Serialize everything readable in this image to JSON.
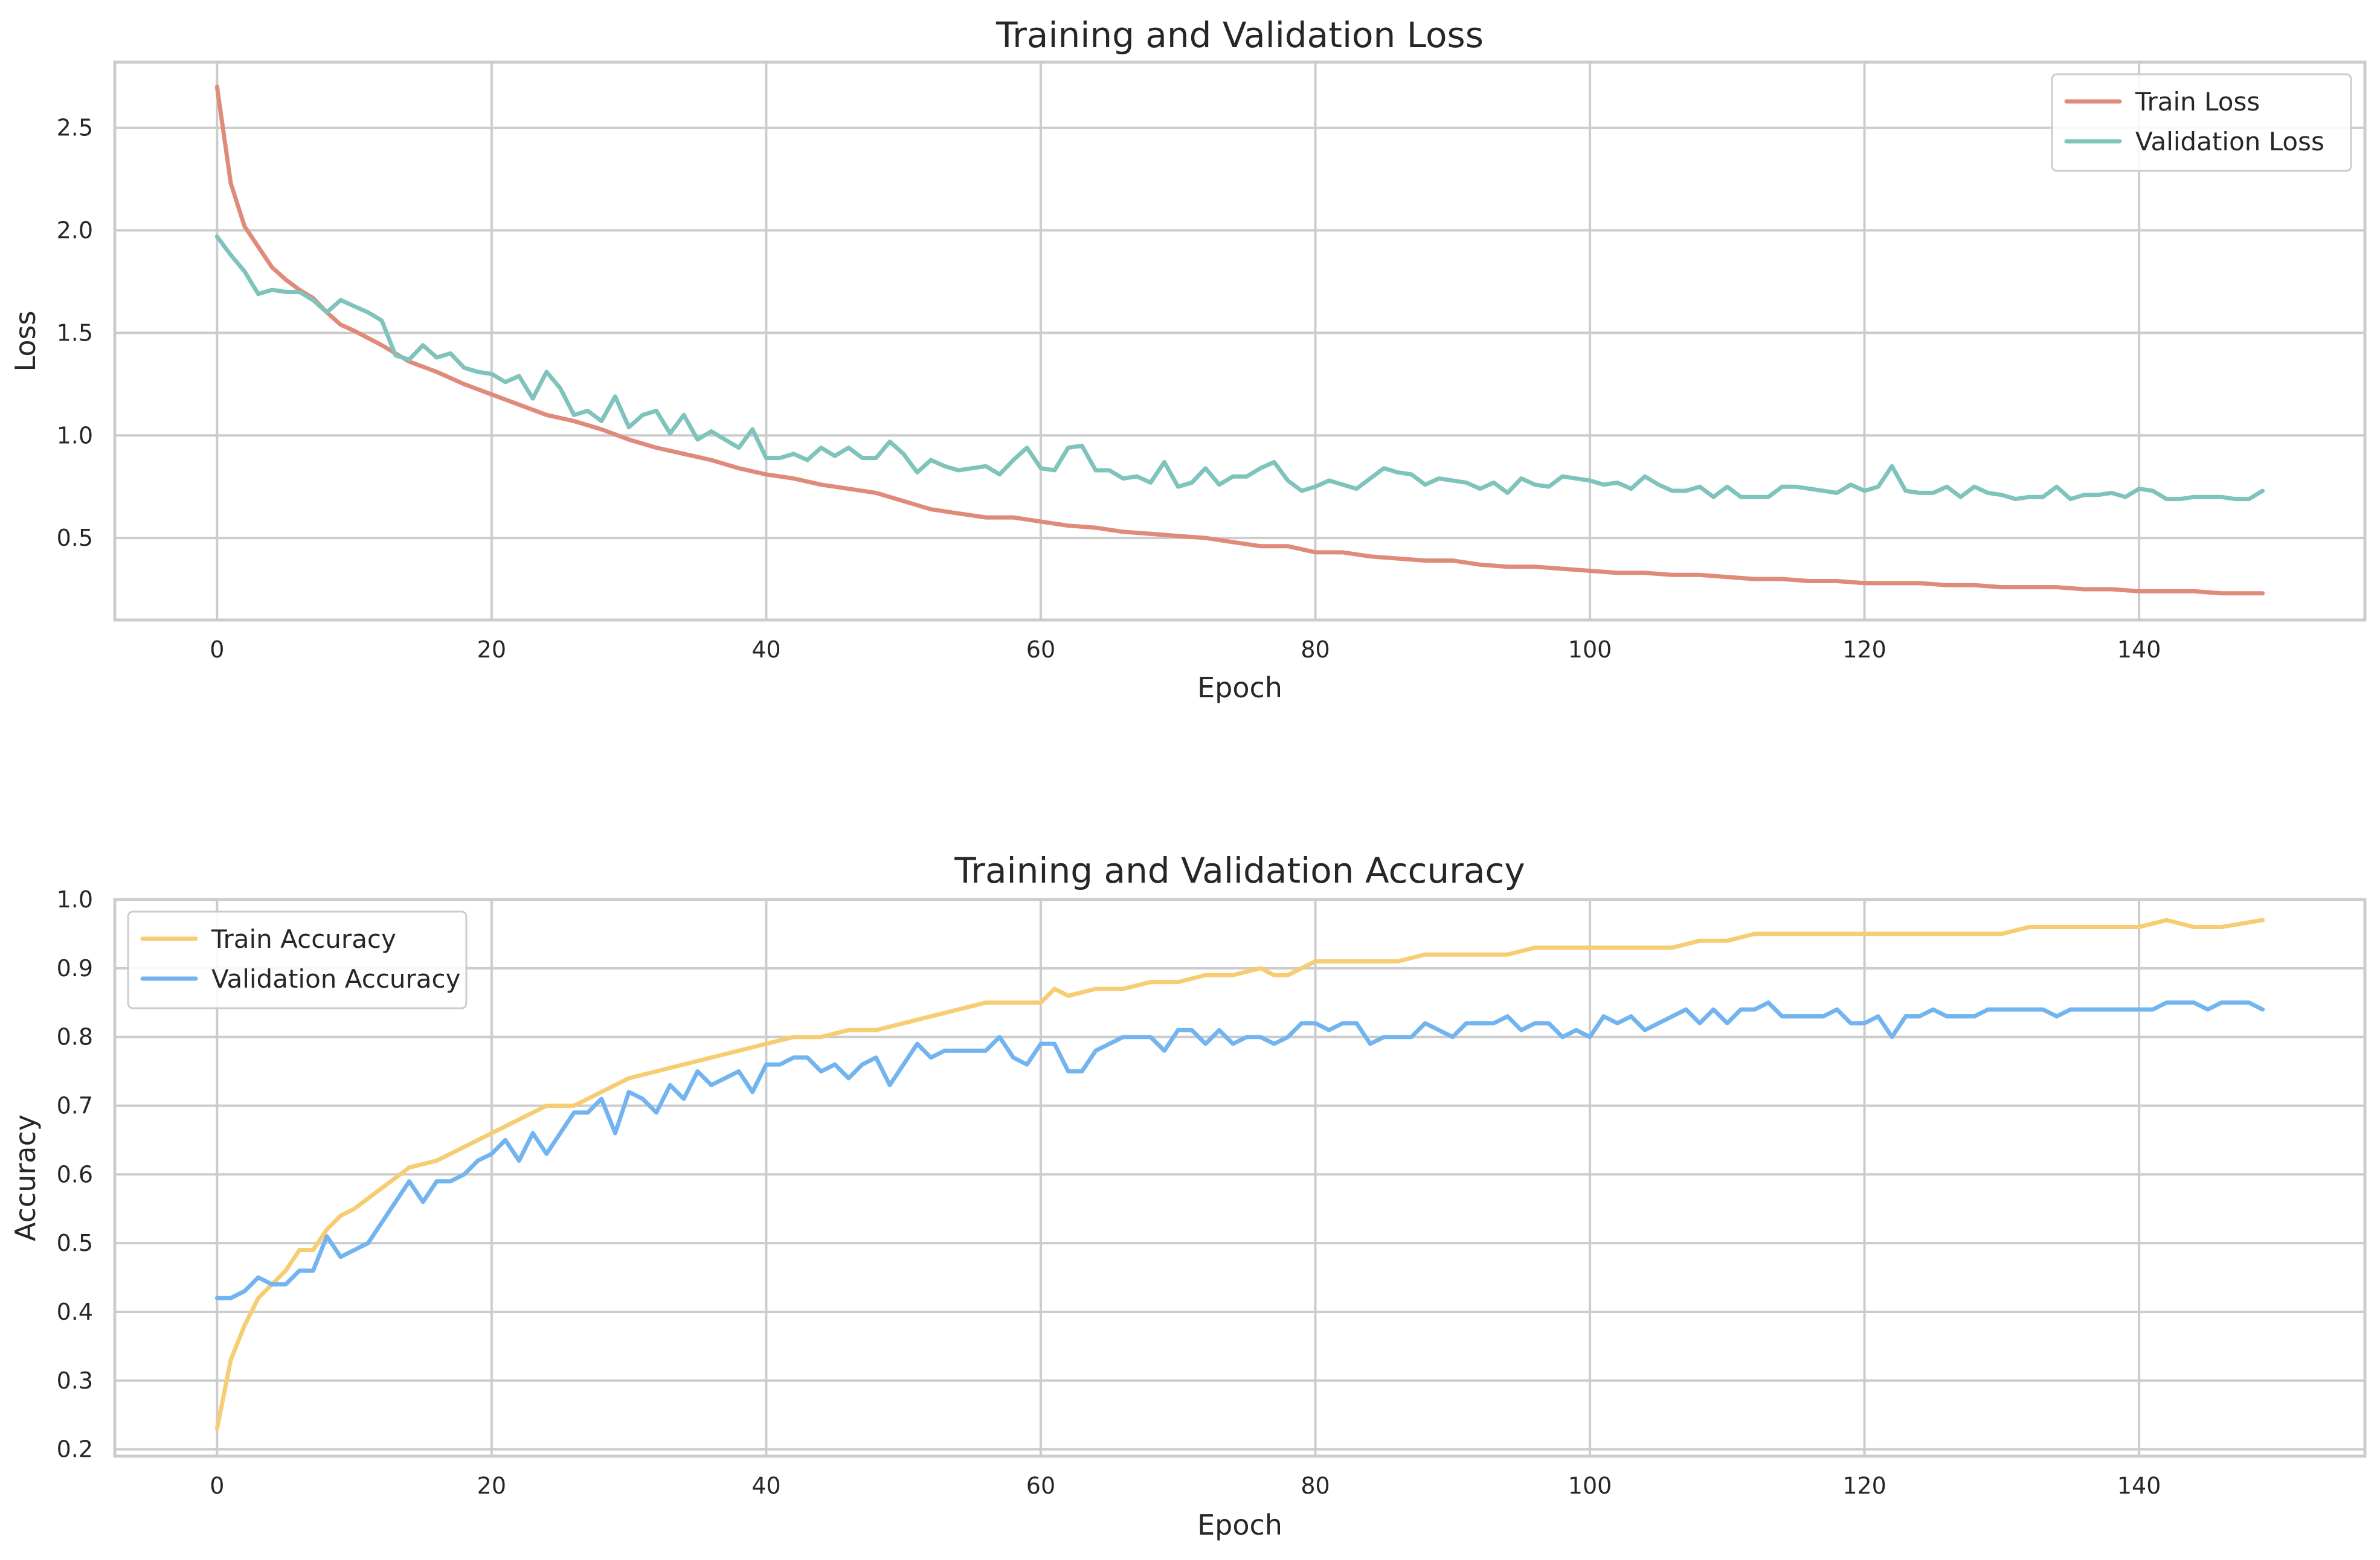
{
  "colors": {
    "train_loss": "#e08a7a",
    "val_loss": "#7ec4bc",
    "train_acc": "#f6cd72",
    "val_acc": "#72b4f0"
  },
  "chart_data": [
    {
      "type": "line",
      "title": "Training and Validation Loss",
      "xlabel": "Epoch",
      "ylabel": "Loss",
      "xlim": [
        -7.45,
        156.45
      ],
      "ylim": [
        0.1,
        2.82
      ],
      "xticks": [
        0,
        20,
        40,
        60,
        80,
        100,
        120,
        140
      ],
      "xtick_labels": [
        "0",
        "20",
        "40",
        "60",
        "80",
        "100",
        "120",
        "140"
      ],
      "yticks": [
        0.5,
        1.0,
        1.5,
        2.0,
        2.5
      ],
      "ytick_labels": [
        "0.5",
        "1.0",
        "1.5",
        "2.0",
        "2.5"
      ],
      "grid": true,
      "legend_position": "upper-right",
      "series": [
        {
          "name": "Train Loss",
          "color": "#e08a7a",
          "x": [
            0,
            1,
            2,
            3,
            4,
            5,
            6,
            7,
            8,
            9,
            10,
            12,
            14,
            16,
            18,
            20,
            22,
            24,
            26,
            28,
            30,
            32,
            34,
            36,
            38,
            40,
            42,
            44,
            46,
            48,
            50,
            52,
            54,
            56,
            58,
            60,
            62,
            64,
            66,
            68,
            70,
            72,
            74,
            76,
            78,
            80,
            82,
            84,
            86,
            88,
            90,
            92,
            94,
            96,
            98,
            100,
            102,
            104,
            106,
            108,
            110,
            112,
            114,
            116,
            118,
            120,
            122,
            124,
            126,
            128,
            130,
            132,
            134,
            136,
            138,
            140,
            142,
            144,
            146,
            149
          ],
          "y": [
            2.7,
            2.23,
            2.02,
            1.92,
            1.82,
            1.76,
            1.71,
            1.67,
            1.6,
            1.54,
            1.51,
            1.44,
            1.36,
            1.31,
            1.25,
            1.2,
            1.15,
            1.1,
            1.07,
            1.03,
            0.98,
            0.94,
            0.91,
            0.88,
            0.84,
            0.81,
            0.79,
            0.76,
            0.74,
            0.72,
            0.68,
            0.64,
            0.62,
            0.6,
            0.6,
            0.58,
            0.56,
            0.55,
            0.53,
            0.52,
            0.51,
            0.5,
            0.48,
            0.46,
            0.46,
            0.43,
            0.43,
            0.41,
            0.4,
            0.39,
            0.39,
            0.37,
            0.36,
            0.36,
            0.35,
            0.34,
            0.33,
            0.33,
            0.32,
            0.32,
            0.31,
            0.3,
            0.3,
            0.29,
            0.29,
            0.28,
            0.28,
            0.28,
            0.27,
            0.27,
            0.26,
            0.26,
            0.26,
            0.25,
            0.25,
            0.24,
            0.24,
            0.24,
            0.23,
            0.23
          ]
        },
        {
          "name": "Validation Loss",
          "color": "#7ec4bc",
          "x": [
            0,
            1,
            2,
            3,
            4,
            5,
            6,
            7,
            8,
            9,
            10,
            11,
            12,
            13,
            14,
            15,
            16,
            17,
            18,
            19,
            20,
            21,
            22,
            23,
            24,
            25,
            26,
            27,
            28,
            29,
            30,
            31,
            32,
            33,
            34,
            35,
            36,
            37,
            38,
            39,
            40,
            41,
            42,
            43,
            44,
            45,
            46,
            47,
            48,
            49,
            50,
            51,
            52,
            53,
            54,
            55,
            56,
            57,
            58,
            59,
            60,
            61,
            62,
            63,
            64,
            65,
            66,
            67,
            68,
            69,
            70,
            71,
            72,
            73,
            74,
            75,
            76,
            77,
            78,
            79,
            80,
            81,
            82,
            83,
            84,
            85,
            86,
            87,
            88,
            89,
            90,
            91,
            92,
            93,
            94,
            95,
            96,
            97,
            98,
            99,
            100,
            101,
            102,
            103,
            104,
            105,
            106,
            107,
            108,
            109,
            110,
            111,
            112,
            113,
            114,
            115,
            116,
            117,
            118,
            119,
            120,
            121,
            122,
            123,
            124,
            125,
            126,
            127,
            128,
            129,
            130,
            131,
            132,
            133,
            134,
            135,
            136,
            137,
            138,
            139,
            140,
            141,
            142,
            143,
            144,
            145,
            146,
            147,
            148,
            149
          ],
          "y": [
            1.97,
            1.88,
            1.8,
            1.69,
            1.71,
            1.7,
            1.7,
            1.66,
            1.6,
            1.66,
            1.63,
            1.6,
            1.56,
            1.39,
            1.37,
            1.44,
            1.38,
            1.4,
            1.33,
            1.31,
            1.3,
            1.26,
            1.29,
            1.18,
            1.31,
            1.23,
            1.1,
            1.12,
            1.07,
            1.19,
            1.04,
            1.1,
            1.12,
            1.01,
            1.1,
            0.98,
            1.02,
            0.98,
            0.94,
            1.03,
            0.89,
            0.89,
            0.91,
            0.88,
            0.94,
            0.9,
            0.94,
            0.89,
            0.89,
            0.97,
            0.91,
            0.82,
            0.88,
            0.85,
            0.83,
            0.84,
            0.85,
            0.81,
            0.88,
            0.94,
            0.84,
            0.83,
            0.94,
            0.95,
            0.83,
            0.83,
            0.79,
            0.8,
            0.77,
            0.87,
            0.75,
            0.77,
            0.84,
            0.76,
            0.8,
            0.8,
            0.84,
            0.87,
            0.78,
            0.73,
            0.75,
            0.78,
            0.76,
            0.74,
            0.79,
            0.84,
            0.82,
            0.81,
            0.76,
            0.79,
            0.78,
            0.77,
            0.74,
            0.77,
            0.72,
            0.79,
            0.76,
            0.75,
            0.8,
            0.79,
            0.78,
            0.76,
            0.77,
            0.74,
            0.8,
            0.76,
            0.73,
            0.73,
            0.75,
            0.7,
            0.75,
            0.7,
            0.7,
            0.7,
            0.75,
            0.75,
            0.74,
            0.73,
            0.72,
            0.76,
            0.73,
            0.75,
            0.85,
            0.73,
            0.72,
            0.72,
            0.75,
            0.7,
            0.75,
            0.72,
            0.71,
            0.69,
            0.7,
            0.7,
            0.75,
            0.69,
            0.71,
            0.71,
            0.72,
            0.7,
            0.74,
            0.73,
            0.69,
            0.69,
            0.7,
            0.7,
            0.7,
            0.69,
            0.69,
            0.73
          ]
        }
      ]
    },
    {
      "type": "line",
      "title": "Training and Validation Accuracy",
      "xlabel": "Epoch",
      "ylabel": "Accuracy",
      "xlim": [
        -7.45,
        156.45
      ],
      "ylim": [
        0.19,
        1.0
      ],
      "xticks": [
        0,
        20,
        40,
        60,
        80,
        100,
        120,
        140
      ],
      "xtick_labels": [
        "0",
        "20",
        "40",
        "60",
        "80",
        "100",
        "120",
        "140"
      ],
      "yticks": [
        0.2,
        0.3,
        0.4,
        0.5,
        0.6,
        0.7,
        0.8,
        0.9,
        1.0
      ],
      "ytick_labels": [
        "0.2",
        "0.3",
        "0.4",
        "0.5",
        "0.6",
        "0.7",
        "0.8",
        "0.9",
        "1.0"
      ],
      "grid": true,
      "legend_position": "upper-left",
      "series": [
        {
          "name": "Train Accuracy",
          "color": "#f6cd72",
          "x": [
            0,
            1,
            2,
            3,
            4,
            5,
            6,
            7,
            8,
            9,
            10,
            12,
            14,
            16,
            18,
            20,
            22,
            24,
            26,
            28,
            30,
            32,
            34,
            36,
            38,
            40,
            42,
            44,
            46,
            48,
            50,
            52,
            54,
            56,
            58,
            60,
            61,
            62,
            64,
            66,
            68,
            70,
            72,
            74,
            76,
            77,
            78,
            80,
            82,
            84,
            86,
            88,
            90,
            92,
            94,
            96,
            98,
            100,
            102,
            104,
            106,
            108,
            110,
            112,
            114,
            116,
            118,
            120,
            122,
            124,
            126,
            128,
            130,
            132,
            134,
            136,
            138,
            140,
            142,
            144,
            146,
            149
          ],
          "y": [
            0.23,
            0.33,
            0.38,
            0.42,
            0.44,
            0.46,
            0.49,
            0.49,
            0.52,
            0.54,
            0.55,
            0.58,
            0.61,
            0.62,
            0.64,
            0.66,
            0.68,
            0.7,
            0.7,
            0.72,
            0.74,
            0.75,
            0.76,
            0.77,
            0.78,
            0.79,
            0.8,
            0.8,
            0.81,
            0.81,
            0.82,
            0.83,
            0.84,
            0.85,
            0.85,
            0.85,
            0.87,
            0.86,
            0.87,
            0.87,
            0.88,
            0.88,
            0.89,
            0.89,
            0.9,
            0.89,
            0.89,
            0.91,
            0.91,
            0.91,
            0.91,
            0.92,
            0.92,
            0.92,
            0.92,
            0.93,
            0.93,
            0.93,
            0.93,
            0.93,
            0.93,
            0.94,
            0.94,
            0.95,
            0.95,
            0.95,
            0.95,
            0.95,
            0.95,
            0.95,
            0.95,
            0.95,
            0.95,
            0.96,
            0.96,
            0.96,
            0.96,
            0.96,
            0.97,
            0.96,
            0.96,
            0.97
          ]
        },
        {
          "name": "Validation Accuracy",
          "color": "#72b4f0",
          "x": [
            0,
            1,
            2,
            3,
            4,
            5,
            6,
            7,
            8,
            9,
            10,
            11,
            12,
            13,
            14,
            15,
            16,
            17,
            18,
            19,
            20,
            21,
            22,
            23,
            24,
            25,
            26,
            27,
            28,
            29,
            30,
            31,
            32,
            33,
            34,
            35,
            36,
            37,
            38,
            39,
            40,
            41,
            42,
            43,
            44,
            45,
            46,
            47,
            48,
            49,
            50,
            51,
            52,
            53,
            54,
            55,
            56,
            57,
            58,
            59,
            60,
            61,
            62,
            63,
            64,
            65,
            66,
            67,
            68,
            69,
            70,
            71,
            72,
            73,
            74,
            75,
            76,
            77,
            78,
            79,
            80,
            81,
            82,
            83,
            84,
            85,
            86,
            87,
            88,
            89,
            90,
            91,
            92,
            93,
            94,
            95,
            96,
            97,
            98,
            99,
            100,
            101,
            102,
            103,
            104,
            105,
            106,
            107,
            108,
            109,
            110,
            111,
            112,
            113,
            114,
            115,
            116,
            117,
            118,
            119,
            120,
            121,
            122,
            123,
            124,
            125,
            126,
            127,
            128,
            129,
            130,
            131,
            132,
            133,
            134,
            135,
            136,
            137,
            138,
            139,
            140,
            141,
            142,
            143,
            144,
            145,
            146,
            147,
            148,
            149
          ],
          "y": [
            0.42,
            0.42,
            0.43,
            0.45,
            0.44,
            0.44,
            0.46,
            0.46,
            0.51,
            0.48,
            0.49,
            0.5,
            0.53,
            0.56,
            0.59,
            0.56,
            0.59,
            0.59,
            0.6,
            0.62,
            0.63,
            0.65,
            0.62,
            0.66,
            0.63,
            0.66,
            0.69,
            0.69,
            0.71,
            0.66,
            0.72,
            0.71,
            0.69,
            0.73,
            0.71,
            0.75,
            0.73,
            0.74,
            0.75,
            0.72,
            0.76,
            0.76,
            0.77,
            0.77,
            0.75,
            0.76,
            0.74,
            0.76,
            0.77,
            0.73,
            0.76,
            0.79,
            0.77,
            0.78,
            0.78,
            0.78,
            0.78,
            0.8,
            0.77,
            0.76,
            0.79,
            0.79,
            0.75,
            0.75,
            0.78,
            0.79,
            0.8,
            0.8,
            0.8,
            0.78,
            0.81,
            0.81,
            0.79,
            0.81,
            0.79,
            0.8,
            0.8,
            0.79,
            0.8,
            0.82,
            0.82,
            0.81,
            0.82,
            0.82,
            0.79,
            0.8,
            0.8,
            0.8,
            0.82,
            0.81,
            0.8,
            0.82,
            0.82,
            0.82,
            0.83,
            0.81,
            0.82,
            0.82,
            0.8,
            0.81,
            0.8,
            0.83,
            0.82,
            0.83,
            0.81,
            0.82,
            0.83,
            0.84,
            0.82,
            0.84,
            0.82,
            0.84,
            0.84,
            0.85,
            0.83,
            0.83,
            0.83,
            0.83,
            0.84,
            0.82,
            0.82,
            0.83,
            0.8,
            0.83,
            0.83,
            0.84,
            0.83,
            0.83,
            0.83,
            0.84,
            0.84,
            0.84,
            0.84,
            0.84,
            0.83,
            0.84,
            0.84,
            0.84,
            0.84,
            0.84,
            0.84,
            0.84,
            0.85,
            0.85,
            0.85,
            0.84,
            0.85,
            0.85,
            0.85,
            0.84
          ]
        }
      ]
    }
  ]
}
